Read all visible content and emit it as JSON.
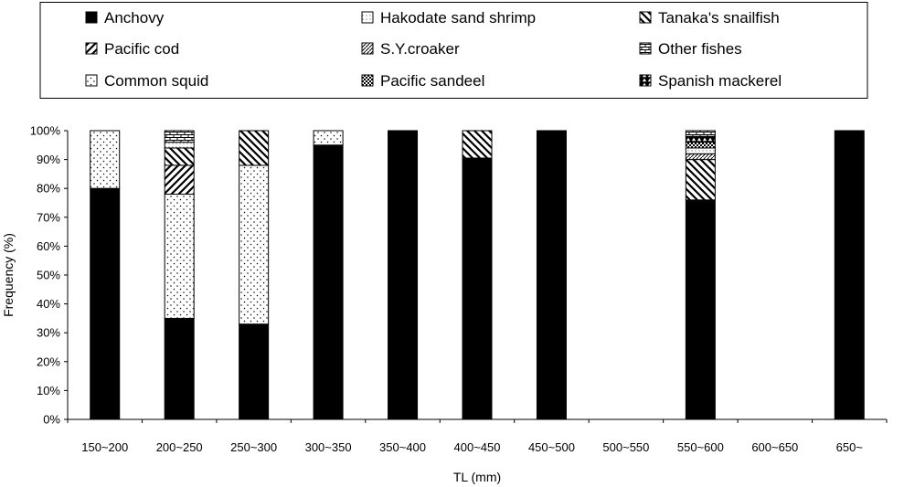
{
  "chart_data": {
    "type": "bar",
    "stacked": true,
    "xlabel": "TL (mm)",
    "ylabel": "Frequency (%)",
    "ylim": [
      0,
      100
    ],
    "yticks": [
      "0%",
      "10%",
      "20%",
      "30%",
      "40%",
      "50%",
      "60%",
      "70%",
      "80%",
      "90%",
      "100%"
    ],
    "grid": false,
    "legend_position": "top",
    "categories": [
      "150~200",
      "200~250",
      "250~300",
      "300~350",
      "350~400",
      "400~450",
      "450~500",
      "500~550",
      "550~600",
      "600~650",
      "650~"
    ],
    "series": [
      {
        "name": "Anchovy",
        "pattern": "solid",
        "values": [
          80,
          35,
          33,
          95,
          100,
          90.5,
          100,
          0,
          76,
          0,
          100
        ]
      },
      {
        "name": "Common squid",
        "pattern": "dots",
        "values": [
          20,
          43,
          55,
          5,
          0,
          0,
          0,
          0,
          0,
          0,
          0
        ]
      },
      {
        "name": "Pacific cod",
        "pattern": "diag-right",
        "values": [
          0,
          10,
          0,
          0,
          0,
          0,
          0,
          0,
          0,
          0,
          0
        ]
      },
      {
        "name": "Tanaka's snailfish",
        "pattern": "diag-left",
        "values": [
          0,
          6,
          12,
          0,
          0,
          9.5,
          0,
          0,
          14,
          0,
          0
        ]
      },
      {
        "name": "S.Y.croaker",
        "pattern": "fine-diag",
        "values": [
          0,
          0,
          0,
          0,
          0,
          0,
          0,
          0,
          2,
          0,
          0
        ]
      },
      {
        "name": "Hakodate sand shrimp",
        "pattern": "fine-dots",
        "values": [
          0,
          2,
          0,
          0,
          0,
          0,
          0,
          0,
          2,
          0,
          0
        ]
      },
      {
        "name": "Pacific sandeel",
        "pattern": "checker",
        "values": [
          0,
          0,
          0,
          0,
          0,
          0,
          0,
          0,
          2,
          0,
          0
        ]
      },
      {
        "name": "Spanish mackerel",
        "pattern": "triangles",
        "values": [
          0,
          0,
          0,
          0,
          0,
          0,
          0,
          0,
          2,
          0,
          0
        ]
      },
      {
        "name": "Other fishes",
        "pattern": "brick",
        "values": [
          0,
          4,
          0,
          0,
          0,
          0,
          0,
          0,
          2,
          0,
          0
        ]
      }
    ],
    "legend_order": [
      "Anchovy",
      "Hakodate sand shrimp",
      "Tanaka's snailfish",
      "Pacific cod",
      "S.Y.croaker",
      "Other fishes",
      "Common squid",
      "Pacific sandeel",
      "Spanish mackerel"
    ]
  }
}
